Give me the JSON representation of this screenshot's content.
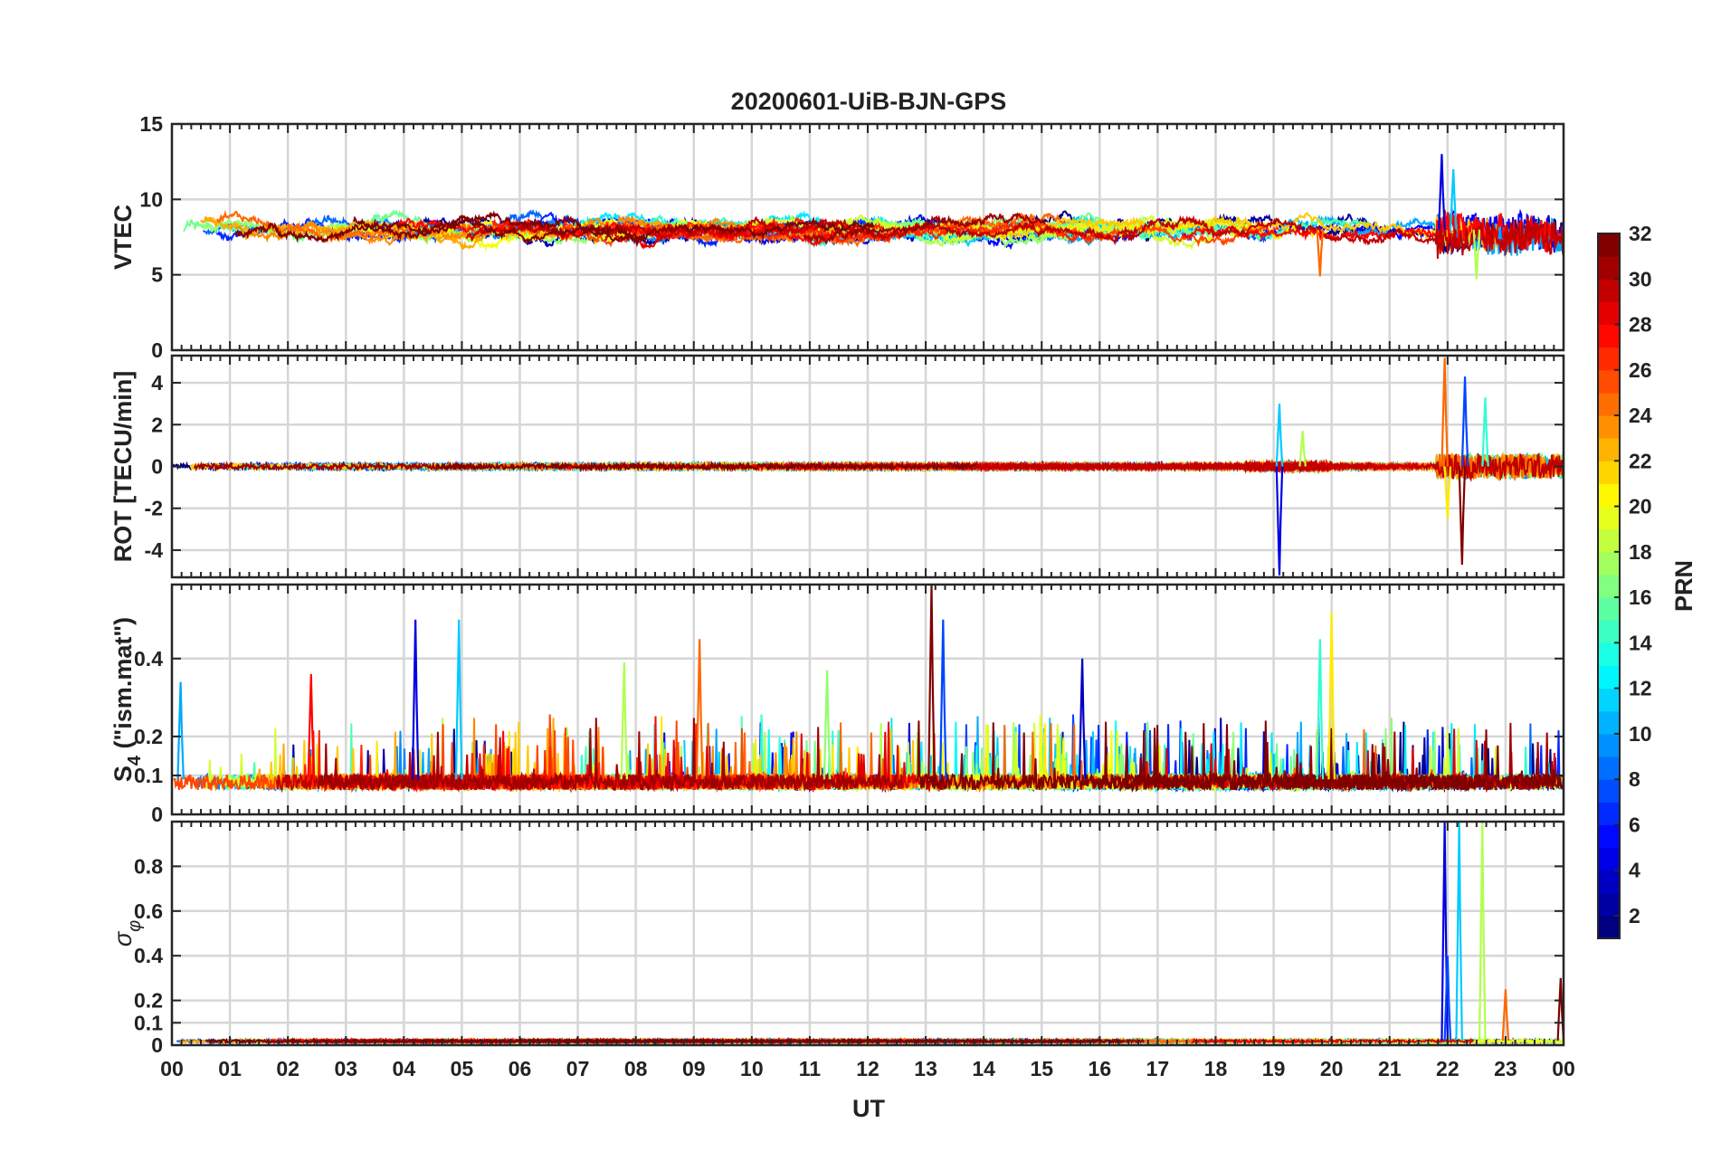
{
  "chart_data": {
    "type": "line",
    "title": "20200601-UiB-BJN-GPS",
    "xlabel": "UT",
    "x_range_hours": [
      0,
      24
    ],
    "x_ticklabels": [
      "00",
      "01",
      "02",
      "03",
      "04",
      "05",
      "06",
      "07",
      "08",
      "09",
      "10",
      "11",
      "12",
      "13",
      "14",
      "15",
      "16",
      "17",
      "18",
      "19",
      "20",
      "21",
      "22",
      "23",
      "00"
    ],
    "grid": true,
    "panels": [
      {
        "id": "vtec",
        "ylabel": "VTEC",
        "ylim": [
          0,
          15
        ],
        "yticks": [
          0,
          5,
          10,
          15
        ],
        "ytick_labels": [
          "0",
          "5",
          "10",
          "15"
        ],
        "typical_level": 8,
        "noise": 0.6,
        "spike_events": [
          {
            "hour": 21.9,
            "value": 13.0
          },
          {
            "hour": 22.1,
            "value": 12.0
          },
          {
            "hour": 22.5,
            "value": 4.7
          },
          {
            "hour": 19.8,
            "value": 4.9
          }
        ]
      },
      {
        "id": "rot",
        "ylabel": "ROT [TECU/min]",
        "ylim": [
          -5.3,
          5.3
        ],
        "yticks": [
          -4,
          -2,
          0,
          2,
          4
        ],
        "ytick_labels": [
          "-4",
          "-2",
          "0",
          "2",
          "4"
        ],
        "typical_level": 0,
        "noise": 0.25,
        "spike_events": [
          {
            "hour": 19.1,
            "value": -5.2
          },
          {
            "hour": 19.1,
            "value": 3.0
          },
          {
            "hour": 19.5,
            "value": 1.7
          },
          {
            "hour": 21.95,
            "value": 5.2
          },
          {
            "hour": 22.25,
            "value": -4.7
          },
          {
            "hour": 22.3,
            "value": 4.3
          },
          {
            "hour": 22.65,
            "value": 3.3
          },
          {
            "hour": 22.0,
            "value": -2.5
          }
        ]
      },
      {
        "id": "s4",
        "ylabel": "S4 (\"ism.mat\")",
        "ylabel_main": "S",
        "ylabel_sub": "4",
        "ylabel_rest": " (\"ism.mat\")",
        "ylim": [
          0,
          0.59
        ],
        "yticks": [
          0,
          0.1,
          0.2,
          0.4
        ],
        "ytick_labels": [
          "0",
          "0.1",
          "0.2",
          "0.4"
        ],
        "typical_level": 0.09,
        "noise": 0.05,
        "spike_events": [
          {
            "hour": 4.2,
            "value": 0.5
          },
          {
            "hour": 4.95,
            "value": 0.5
          },
          {
            "hour": 7.8,
            "value": 0.39
          },
          {
            "hour": 9.1,
            "value": 0.45
          },
          {
            "hour": 13.1,
            "value": 0.59
          },
          {
            "hour": 13.3,
            "value": 0.5
          },
          {
            "hour": 19.8,
            "value": 0.45
          },
          {
            "hour": 20.0,
            "value": 0.52
          },
          {
            "hour": 2.4,
            "value": 0.36
          },
          {
            "hour": 15.7,
            "value": 0.4
          },
          {
            "hour": 0.15,
            "value": 0.34
          },
          {
            "hour": 11.3,
            "value": 0.37
          }
        ]
      },
      {
        "id": "sigma_phi",
        "ylabel": "σφ",
        "ylabel_main": "σ",
        "ylabel_sub": "φ",
        "ylim": [
          0,
          1.0
        ],
        "yticks": [
          0,
          0.1,
          0.2,
          0.4,
          0.6,
          0.8
        ],
        "ytick_labels": [
          "0",
          "0.1",
          "0.2",
          "0.4",
          "0.6",
          "0.8"
        ],
        "typical_level": 0.02,
        "noise": 0.012,
        "spike_events": [
          {
            "hour": 21.95,
            "value": 1.0
          },
          {
            "hour": 22.2,
            "value": 1.0
          },
          {
            "hour": 22.6,
            "value": 1.0
          },
          {
            "hour": 23.0,
            "value": 0.25
          },
          {
            "hour": 23.95,
            "value": 0.3
          },
          {
            "hour": 22.0,
            "value": 0.4
          }
        ]
      }
    ],
    "series_note": "one trace per GPS PRN satellite, colored by PRN",
    "colorbar": {
      "label": "PRN",
      "range": [
        1,
        32
      ],
      "ticks": [
        2,
        4,
        6,
        8,
        10,
        12,
        14,
        16,
        18,
        20,
        22,
        24,
        26,
        28,
        30,
        32
      ],
      "tick_labels": [
        "2",
        "4",
        "6",
        "8",
        "10",
        "12",
        "14",
        "16",
        "18",
        "20",
        "22",
        "24",
        "26",
        "28",
        "30",
        "32"
      ],
      "colormap": "jet"
    }
  }
}
